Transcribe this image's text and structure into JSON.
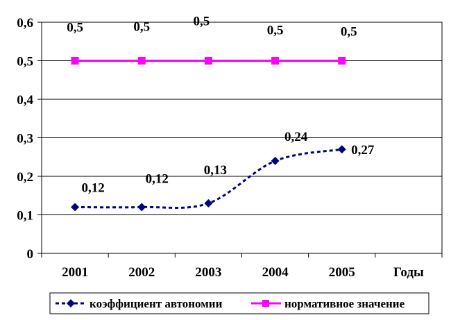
{
  "chart_data": {
    "type": "line",
    "categories": [
      "2001",
      "2002",
      "2003",
      "2004",
      "2005"
    ],
    "x_extra_label": "Годы",
    "ylim": [
      0,
      0.6
    ],
    "yticks": [
      "0",
      "0,1",
      "0,2",
      "0,3",
      "0,4",
      "0,5",
      "0,6"
    ],
    "grid": true,
    "legend_position": "bottom",
    "series": [
      {
        "name": "коэффициент автономии",
        "values": [
          0.12,
          0.12,
          0.13,
          0.24,
          0.27
        ],
        "labels": [
          "0,12",
          "0,12",
          "0,13",
          "0,24",
          "0,27"
        ],
        "color": "#000080",
        "line_style": "dashed",
        "marker": "diamond"
      },
      {
        "name": "нормативное значение",
        "values": [
          0.5,
          0.5,
          0.5,
          0.5,
          0.5
        ],
        "labels": [
          "0,5",
          "0,5",
          "0,5",
          "0,5",
          "0,5"
        ],
        "color": "#FF00FF",
        "line_style": "solid",
        "marker": "square"
      }
    ]
  }
}
